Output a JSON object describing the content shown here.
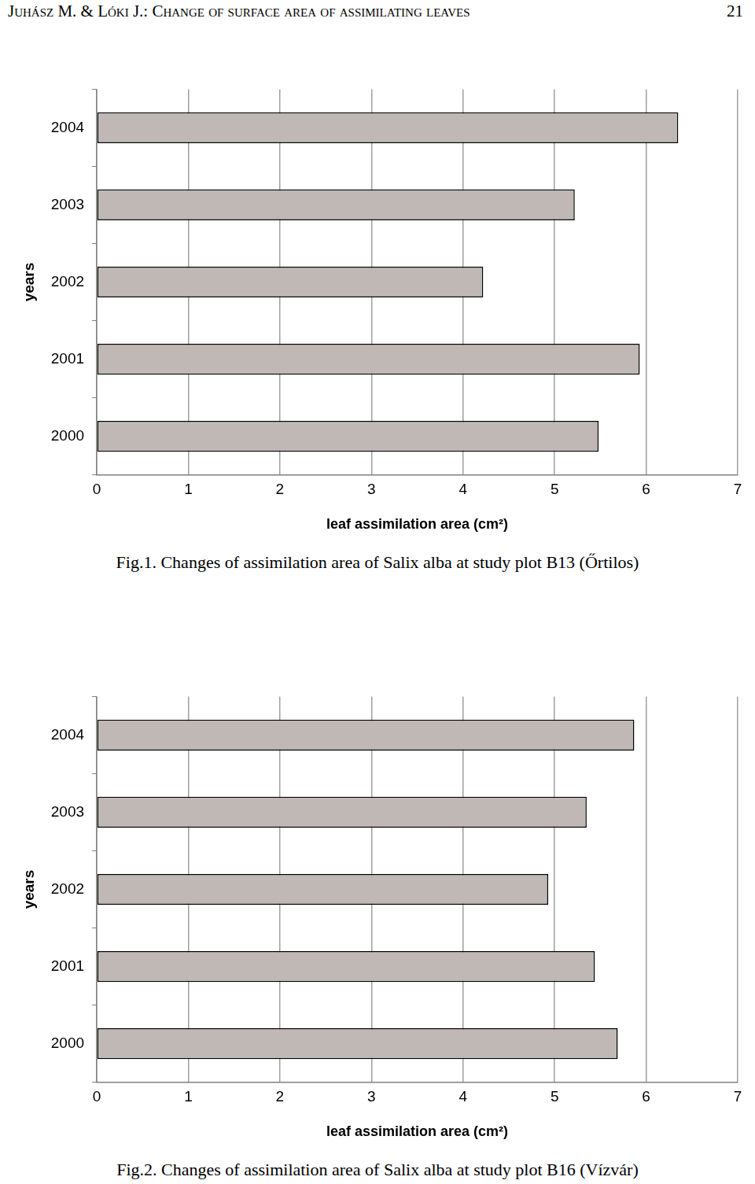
{
  "header": {
    "text": "Juhász M. & Lóki J.: Change of surface area of assimilating leaves",
    "page": "21"
  },
  "chart_data": [
    {
      "type": "bar",
      "title": "Fig.1. Changes of assimilation area of Salix alba at study plot B13 (Őrtilos)",
      "orientation": "horizontal",
      "x_label": "leaf assimilation area (cm²)",
      "y_label": "years",
      "categories": [
        "2004",
        "2003",
        "2002",
        "2001",
        "2000"
      ],
      "values": [
        6.35,
        5.22,
        4.22,
        5.93,
        5.48
      ],
      "color": "#bfb8b5",
      "xlim": [
        0,
        7
      ],
      "xticks": [
        0,
        1,
        2,
        3,
        4,
        5,
        6,
        7
      ],
      "grid": true
    },
    {
      "type": "bar",
      "title": "Fig.2. Changes of assimilation area of Salix alba at study plot B16 (Vízvár)",
      "orientation": "horizontal",
      "x_label": "leaf assimilation area (cm²)",
      "y_label": "years",
      "categories": [
        "2004",
        "2003",
        "2002",
        "2001",
        "2000"
      ],
      "values": [
        5.87,
        5.35,
        4.93,
        5.44,
        5.69
      ],
      "color": "#bfb8b5",
      "xlim": [
        0,
        7
      ],
      "xticks": [
        0,
        1,
        2,
        3,
        4,
        5,
        6,
        7
      ],
      "grid": true
    }
  ]
}
